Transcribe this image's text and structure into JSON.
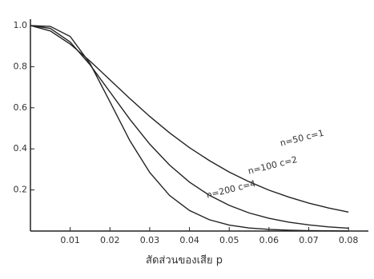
{
  "chart_data": {
    "type": "line",
    "x_label": "สัดส่วนของเสีย p",
    "x": [
      0,
      0.005,
      0.01,
      0.015,
      0.02,
      0.025,
      0.03,
      0.035,
      0.04,
      0.045,
      0.05,
      0.055,
      0.06,
      0.065,
      0.07,
      0.075,
      0.08
    ],
    "series": [
      {
        "name": "n=50 c=1",
        "color": "#222222",
        "values": [
          1,
          0.974,
          0.91,
          0.827,
          0.736,
          0.645,
          0.558,
          0.478,
          0.406,
          0.343,
          0.287,
          0.24,
          0.199,
          0.165,
          0.136,
          0.112,
          0.092
        ]
      },
      {
        "name": "n=100 c=2",
        "color": "#222222",
        "values": [
          1,
          0.986,
          0.92,
          0.809,
          0.677,
          0.544,
          0.423,
          0.321,
          0.238,
          0.174,
          0.125,
          0.088,
          0.062,
          0.043,
          0.03,
          0.02,
          0.014
        ]
      },
      {
        "name": "n=200 c=4",
        "color": "#222222",
        "values": [
          1,
          0.996,
          0.947,
          0.815,
          0.629,
          0.44,
          0.285,
          0.173,
          0.1,
          0.055,
          0.029,
          0.015,
          0.008,
          0.004,
          0.002,
          0.001,
          0
        ]
      }
    ],
    "xlim": [
      0,
      0.085
    ],
    "ylim": [
      0,
      1
    ],
    "xticks": [
      0.01,
      0.02,
      0.03,
      0.04,
      0.05,
      0.06,
      0.07,
      0.08
    ],
    "yticks": [
      0.2,
      0.4,
      0.6,
      0.8,
      {
        "value": 1,
        "label": "1.0"
      }
    ]
  }
}
